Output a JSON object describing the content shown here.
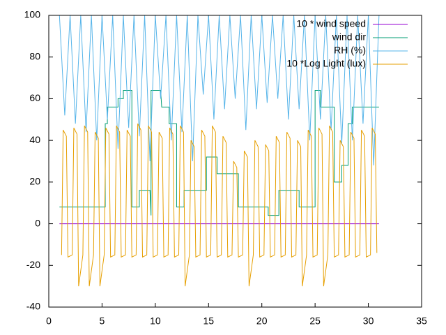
{
  "chart_data": {
    "type": "line",
    "xlim": [
      0,
      35
    ],
    "xticks": [
      0,
      5,
      10,
      15,
      20,
      25,
      30,
      35
    ],
    "ylim": [
      -40,
      100
    ],
    "yticks": [
      -40,
      -20,
      0,
      20,
      40,
      60,
      80,
      100
    ],
    "legend": "top right",
    "series": [
      {
        "name": "10 * wind speed",
        "color": "#9400d3",
        "x": [
          1,
          31
        ],
        "values": [
          0,
          0
        ]
      },
      {
        "name": "wind dir",
        "color": "#009e73",
        "x": [
          1,
          5.3,
          5.3,
          5.5,
          5.5,
          6.5,
          6.5,
          7,
          7,
          7.8,
          7.8,
          8.5,
          8.5,
          9.5,
          9.6,
          9.6,
          10.5,
          10.6,
          11.3,
          11.3,
          12,
          12,
          12.7,
          12.7,
          14.8,
          14.8,
          15.8,
          15.8,
          17.8,
          17.8,
          20.6,
          20.6,
          21.6,
          21.6,
          23.5,
          23.5,
          25,
          25,
          25.5,
          25.5,
          26.8,
          26.8,
          27.5,
          27.5,
          28.1,
          28.1,
          28.5,
          28.5,
          31
        ],
        "values": [
          8,
          8,
          48,
          48,
          56,
          56,
          60,
          60,
          64,
          64,
          8,
          8,
          16,
          16,
          4,
          64,
          64,
          56,
          56,
          48,
          48,
          8,
          8,
          16,
          16,
          32,
          32,
          24,
          24,
          8,
          8,
          4,
          4,
          16,
          16,
          8,
          8,
          64,
          64,
          56,
          56,
          20,
          20,
          28,
          28,
          48,
          48,
          56,
          56
        ]
      },
      {
        "name": "RH (%)",
        "color": "#56b4e9",
        "x": [
          1,
          1.5,
          2,
          2.5,
          3,
          3.5,
          4,
          4.5,
          5,
          5.5,
          6,
          6.5,
          7,
          7.5,
          8,
          8.5,
          9,
          9.5,
          10,
          10.5,
          11,
          11.5,
          12,
          12.5,
          13,
          13.5,
          14,
          14.5,
          15,
          15.5,
          16,
          16.5,
          17,
          17.5,
          18,
          18.5,
          19,
          19.5,
          20,
          20.5,
          21,
          21.5,
          22,
          22.5,
          23,
          23.5,
          24,
          24.5,
          25,
          25.5,
          26,
          26.5,
          27,
          27.5,
          28,
          28.5,
          29,
          29.5,
          30,
          30.5,
          31
        ],
        "values": [
          100,
          52,
          100,
          48,
          100,
          44,
          100,
          40,
          100,
          50,
          100,
          36,
          100,
          46,
          100,
          42,
          100,
          30,
          100,
          60,
          100,
          40,
          100,
          44,
          100,
          30,
          100,
          62,
          100,
          50,
          100,
          55,
          100,
          60,
          100,
          45,
          100,
          55,
          100,
          58,
          100,
          60,
          100,
          50,
          100,
          55,
          100,
          40,
          100,
          50,
          100,
          45,
          100,
          38,
          100,
          40,
          100,
          48,
          100,
          28,
          100
        ]
      },
      {
        "name": "10 *Log Light (lux)",
        "color": "#e69f00",
        "x": [
          1.2,
          1.35,
          1.65,
          1.8,
          2.2,
          2.35,
          2.65,
          2.8,
          3.2,
          3.35,
          3.65,
          3.8,
          4.2,
          4.35,
          4.65,
          4.8,
          5.2,
          5.35,
          5.65,
          5.8,
          6.2,
          6.35,
          6.65,
          6.8,
          7.2,
          7.35,
          7.65,
          7.8,
          8.2,
          8.35,
          8.65,
          8.8,
          9.2,
          9.35,
          9.65,
          9.8,
          10.2,
          10.35,
          10.65,
          10.8,
          11.2,
          11.35,
          11.65,
          11.8,
          12.2,
          12.35,
          12.65,
          12.8,
          13.2,
          13.35,
          13.65,
          13.8,
          14.2,
          14.35,
          14.65,
          14.8,
          15.2,
          15.35,
          15.65,
          15.8,
          16.2,
          16.35,
          16.65,
          16.8,
          17.2,
          17.35,
          17.65,
          17.8,
          18.2,
          18.35,
          18.65,
          18.8,
          19.2,
          19.35,
          19.65,
          19.8,
          20.2,
          20.35,
          20.65,
          20.8,
          21.2,
          21.35,
          21.65,
          21.8,
          22.2,
          22.35,
          22.65,
          22.8,
          23.2,
          23.35,
          23.65,
          23.8,
          24.2,
          24.35,
          24.65,
          24.8,
          25.2,
          25.35,
          25.65,
          25.8,
          26.2,
          26.35,
          26.65,
          26.8,
          27.2,
          27.35,
          27.65,
          27.8,
          28.2,
          28.35,
          28.65,
          28.8,
          29.2,
          29.35,
          29.65,
          29.8,
          30.2,
          30.35,
          30.65,
          30.8
        ],
        "values": [
          -15,
          45,
          42,
          -16,
          -15,
          46,
          43,
          -30,
          -15,
          47,
          44,
          -30,
          -15,
          44,
          41,
          -30,
          -15,
          46,
          43,
          -16,
          -15,
          47,
          44,
          -16,
          -15,
          45,
          42,
          -16,
          -15,
          48,
          45,
          -16,
          -15,
          47,
          44,
          -16,
          -15,
          44,
          41,
          -16,
          -15,
          46,
          43,
          -16,
          -15,
          47,
          44,
          -30,
          -15,
          40,
          37,
          -16,
          -15,
          45,
          42,
          -16,
          -15,
          47,
          44,
          -16,
          -15,
          42,
          39,
          -16,
          -15,
          30,
          27,
          -16,
          -15,
          35,
          32,
          -30,
          -15,
          40,
          37,
          -16,
          -15,
          38,
          35,
          -16,
          -15,
          42,
          39,
          -16,
          -15,
          44,
          41,
          -16,
          -15,
          40,
          37,
          -30,
          -15,
          45,
          42,
          -16,
          -15,
          46,
          43,
          -30,
          -15,
          47,
          44,
          -16,
          -15,
          40,
          37,
          -16,
          -15,
          44,
          41,
          -16,
          -15,
          45,
          42,
          -16,
          -15,
          46,
          43,
          -14
        ]
      }
    ]
  }
}
